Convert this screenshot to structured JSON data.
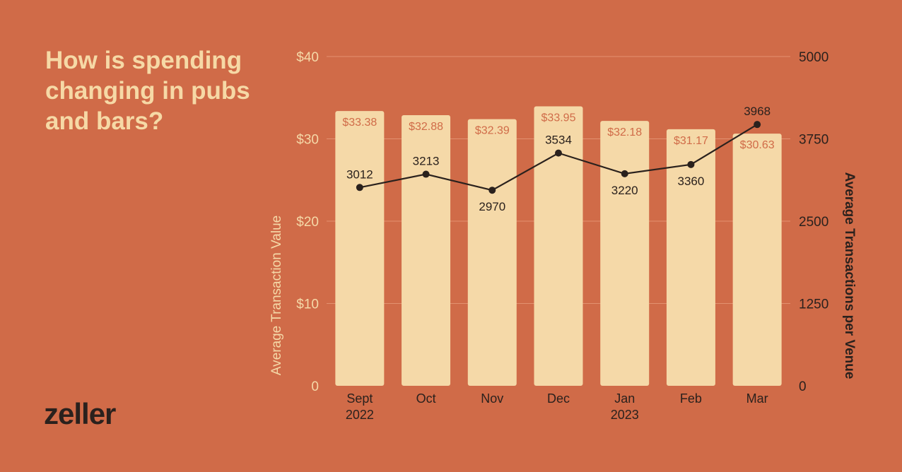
{
  "headline": "How is spending changing in pubs and bars?",
  "brand": "zeller",
  "colors": {
    "background": "#D06B48",
    "bar": "#F5D9A8",
    "bar_label": "#D06B48",
    "line": "#2A211D",
    "left_axis_text": "#F5D9A8",
    "right_axis_text": "#2A211D",
    "gridline": "#E39170"
  },
  "chart_data": {
    "type": "bar",
    "categories": [
      [
        "Sept",
        "2022"
      ],
      [
        "Oct"
      ],
      [
        "Nov"
      ],
      [
        "Dec"
      ],
      [
        "Jan",
        "2023"
      ],
      [
        "Feb"
      ],
      [
        "Mar"
      ]
    ],
    "series": [
      {
        "name": "Average Transaction Value",
        "type": "bar",
        "axis": "left",
        "values": [
          33.38,
          32.88,
          32.39,
          33.95,
          32.18,
          31.17,
          30.63
        ],
        "labels": [
          "$33.38",
          "$32.88",
          "$32.39",
          "$33.95",
          "$32.18",
          "$31.17",
          "$30.63"
        ]
      },
      {
        "name": "Average Transactions per Venue",
        "type": "line",
        "axis": "right",
        "values": [
          3012,
          3213,
          2970,
          3534,
          3220,
          3360,
          3968
        ],
        "labels": [
          "3012",
          "3213",
          "2970",
          "3534",
          "3220",
          "3360",
          "3968"
        ]
      }
    ],
    "y_left": {
      "label": "Average Transaction Value",
      "range": [
        0,
        40
      ],
      "ticks": [
        0,
        10,
        20,
        30,
        40
      ],
      "tick_labels": [
        "0",
        "$10",
        "$20",
        "$30",
        "$40"
      ]
    },
    "y_right": {
      "label": "Average Transactions per Venue",
      "range": [
        0,
        5000
      ],
      "ticks": [
        0,
        1250,
        2500,
        3750,
        5000
      ],
      "tick_labels": [
        "0",
        "1250",
        "2500",
        "3750",
        "5000"
      ]
    },
    "grid": true
  }
}
